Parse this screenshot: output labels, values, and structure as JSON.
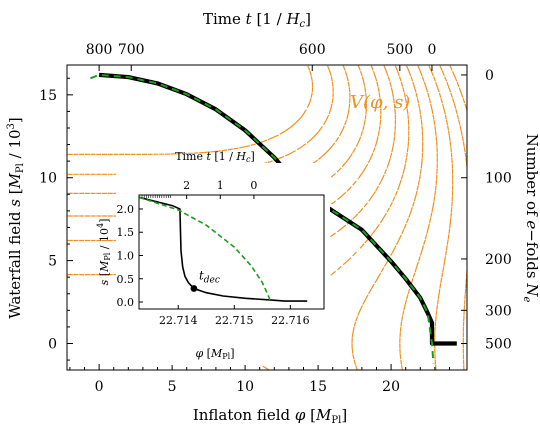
{
  "chart_data": [
    {
      "type": "line",
      "xlabel": "Inflaton field  φ [M_Pl]",
      "ylabel": "Waterfall field  s [M_Pl / 10^3]",
      "top_label": "Time  t [1 / H_c]",
      "right_label": "Number of e-folds  N_e",
      "xlim": [
        -2.2,
        25.2
      ],
      "ylim": [
        -1.6,
        16.8
      ],
      "x_ticks": [
        0,
        5,
        10,
        15,
        20
      ],
      "y_ticks": [
        0,
        5,
        10,
        15
      ],
      "top_ticks": [
        {
          "label": "800",
          "phi": 0
        },
        {
          "label": "700",
          "phi": 2.2
        },
        {
          "label": "600",
          "phi": 14.6
        },
        {
          "label": "500",
          "phi": 20.6
        },
        {
          "label": "0",
          "phi": 22.8
        }
      ],
      "right_ticks": [
        {
          "label": "0",
          "s": 16.2
        },
        {
          "label": "100",
          "s": 10.0
        },
        {
          "label": "200",
          "s": 5.1
        },
        {
          "label": "300",
          "s": 2.0
        },
        {
          "label": "500",
          "s": 0.0
        }
      ],
      "potential_label": "V(φ, s)",
      "phi_c": 22.8,
      "s_max": 16.2,
      "series": [
        {
          "role": "trajectory",
          "color": "#000000",
          "style": "solid",
          "x": [
            0,
            2,
            4,
            6,
            8,
            10,
            12,
            14,
            16,
            18,
            20,
            21,
            22,
            22.5,
            22.8,
            22.8,
            24.5
          ],
          "y": [
            16.2,
            16.07,
            15.69,
            15.04,
            14.12,
            12.86,
            11.22,
            9.17,
            8.0,
            6.85,
            4.95,
            3.9,
            2.75,
            1.85,
            1.25,
            0.0,
            0.0
          ]
        },
        {
          "role": "slow-roll attractor",
          "color": "#1a9e1a",
          "style": "dashed",
          "x": [
            -0.6,
            0,
            2,
            4,
            6,
            8,
            10,
            12,
            14,
            16,
            18,
            20,
            21,
            22,
            22.5,
            22.8,
            22.9
          ],
          "y": [
            16.0,
            16.2,
            16.07,
            15.69,
            15.04,
            14.12,
            12.86,
            11.22,
            9.17,
            8.0,
            6.85,
            4.95,
            3.9,
            2.75,
            1.85,
            0.0,
            -1.2
          ]
        }
      ]
    },
    {
      "type": "line",
      "xlabel": "φ [M_Pl]",
      "ylabel": "s [M_Pl / 10^4]",
      "top_label": "Time  t [1 / H_c]",
      "xlim": [
        22.7133,
        22.7166
      ],
      "ylim": [
        -0.15,
        2.3
      ],
      "x_ticks": [
        22.714,
        22.715,
        22.716
      ],
      "y_ticks": [
        0.0,
        0.5,
        1.0,
        1.5,
        2.0
      ],
      "top_ticks": [
        {
          "label": "2",
          "phi": 22.71415
        },
        {
          "label": "1",
          "phi": 22.71475
        },
        {
          "label": "0",
          "phi": 22.71535
        }
      ],
      "marker": {
        "label": "t_dec",
        "x": 22.71428,
        "y": 0.29
      },
      "series": [
        {
          "role": "trajectory",
          "color": "#000000",
          "style": "solid",
          "x": [
            22.7133,
            22.7139,
            22.71403,
            22.71405,
            22.71408,
            22.71412,
            22.71418,
            22.71428,
            22.7145,
            22.7148,
            22.7152,
            22.7157,
            22.7159,
            22.7163
          ],
          "y": [
            2.25,
            2.07,
            2.0,
            1.1,
            0.75,
            0.55,
            0.42,
            0.29,
            0.2,
            0.13,
            0.08,
            0.04,
            0.02,
            0.02
          ]
        },
        {
          "role": "slow-roll attractor",
          "color": "#1a9e1a",
          "style": "dashed",
          "x": [
            22.7133,
            22.714,
            22.7145,
            22.715,
            22.7153,
            22.7155,
            22.7156,
            22.71565
          ],
          "y": [
            2.25,
            1.98,
            1.65,
            1.18,
            0.78,
            0.42,
            0.16,
            0.0
          ]
        }
      ]
    }
  ]
}
